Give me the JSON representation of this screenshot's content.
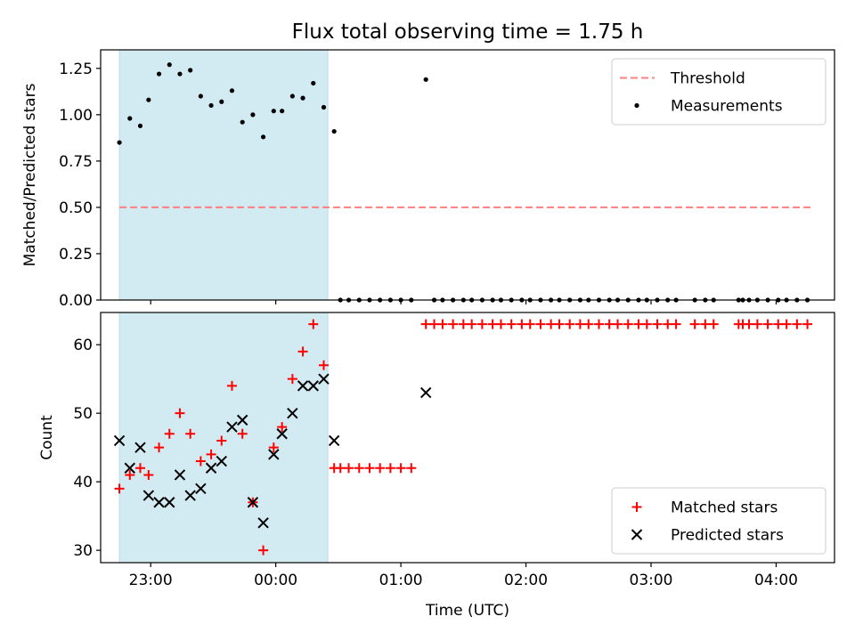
{
  "figure": {
    "title": "Flux total observing time = 1.75 h",
    "xlabel": "Time (UTC)"
  },
  "chart_data": [
    {
      "type": "scatter",
      "title": "Flux total observing time = 1.75 h",
      "ylabel": "Matched/Predicted stars",
      "x_time_range": [
        "22:36",
        "04:28"
      ],
      "ylim": [
        0,
        1.35
      ],
      "yticks": [
        0.0,
        0.25,
        0.5,
        0.75,
        1.0,
        1.25
      ],
      "ytick_labels": [
        "0.00",
        "0.25",
        "0.50",
        "0.75",
        "1.00",
        "1.25"
      ],
      "xticks": [
        "23:00",
        "00:00",
        "01:00",
        "02:00",
        "03:00",
        "04:00"
      ],
      "shaded_region": {
        "start": "22:45",
        "end": "00:25",
        "color": "#add8e6"
      },
      "legend_position": "upper right",
      "threshold": {
        "name": "Threshold",
        "value": 0.5,
        "start": "22:45",
        "end": "04:17",
        "color": "#ff7f7f",
        "style": "dashed"
      },
      "series": [
        {
          "name": "Measurements",
          "color": "#000000",
          "marker": "dot",
          "points": [
            [
              "22:45",
              0.85
            ],
            [
              "22:50",
              0.98
            ],
            [
              "22:55",
              0.94
            ],
            [
              "22:59",
              1.08
            ],
            [
              "23:04",
              1.22
            ],
            [
              "23:09",
              1.27
            ],
            [
              "23:14",
              1.22
            ],
            [
              "23:19",
              1.24
            ],
            [
              "23:24",
              1.1
            ],
            [
              "23:29",
              1.05
            ],
            [
              "23:34",
              1.07
            ],
            [
              "23:39",
              1.13
            ],
            [
              "23:44",
              0.96
            ],
            [
              "23:49",
              1.0
            ],
            [
              "23:54",
              0.88
            ],
            [
              "23:59",
              1.02
            ],
            [
              "00:03",
              1.02
            ],
            [
              "00:08",
              1.1
            ],
            [
              "00:13",
              1.09
            ],
            [
              "00:18",
              1.17
            ],
            [
              "00:23",
              1.04
            ],
            [
              "00:28",
              0.91
            ],
            [
              "00:31",
              0.0
            ],
            [
              "00:35",
              0.0
            ],
            [
              "00:40",
              0.0
            ],
            [
              "00:45",
              0.0
            ],
            [
              "00:50",
              0.0
            ],
            [
              "00:55",
              0.0
            ],
            [
              "01:00",
              0.0
            ],
            [
              "01:05",
              0.0
            ],
            [
              "01:12",
              1.19
            ],
            [
              "01:16",
              0.0
            ],
            [
              "01:20",
              0.0
            ],
            [
              "01:25",
              0.0
            ],
            [
              "01:30",
              0.0
            ],
            [
              "01:34",
              0.0
            ],
            [
              "01:39",
              0.0
            ],
            [
              "01:44",
              0.0
            ],
            [
              "01:48",
              0.0
            ],
            [
              "01:53",
              0.0
            ],
            [
              "01:58",
              0.0
            ],
            [
              "02:02",
              0.0
            ],
            [
              "02:07",
              0.0
            ],
            [
              "02:12",
              0.0
            ],
            [
              "02:16",
              0.0
            ],
            [
              "02:21",
              0.0
            ],
            [
              "02:26",
              0.0
            ],
            [
              "02:30",
              0.0
            ],
            [
              "02:35",
              0.0
            ],
            [
              "02:40",
              0.0
            ],
            [
              "02:44",
              0.0
            ],
            [
              "02:49",
              0.0
            ],
            [
              "02:54",
              0.0
            ],
            [
              "02:58",
              0.0
            ],
            [
              "03:03",
              0.0
            ],
            [
              "03:08",
              0.0
            ],
            [
              "03:12",
              0.0
            ],
            [
              "03:21",
              0.0
            ],
            [
              "03:26",
              0.0
            ],
            [
              "03:30",
              0.0
            ],
            [
              "03:42",
              0.0
            ],
            [
              "03:44",
              0.0
            ],
            [
              "03:47",
              0.0
            ],
            [
              "03:51",
              0.0
            ],
            [
              "03:56",
              0.0
            ],
            [
              "04:01",
              0.0
            ],
            [
              "04:05",
              0.0
            ],
            [
              "04:10",
              0.0
            ],
            [
              "04:15",
              0.0
            ]
          ]
        }
      ]
    },
    {
      "type": "scatter",
      "xlabel": "Time (UTC)",
      "ylabel": "Count",
      "x_time_range": [
        "22:36",
        "04:28"
      ],
      "ylim": [
        28.2,
        64.7
      ],
      "yticks": [
        30,
        40,
        50,
        60
      ],
      "ytick_labels": [
        "30",
        "40",
        "50",
        "60"
      ],
      "xticks": [
        "23:00",
        "00:00",
        "01:00",
        "02:00",
        "03:00",
        "04:00"
      ],
      "shaded_region": {
        "start": "22:45",
        "end": "00:25",
        "color": "#add8e6"
      },
      "legend_position": "lower right",
      "series": [
        {
          "name": "Matched stars",
          "color": "#ff0000",
          "marker": "plus",
          "points": [
            [
              "22:45",
              39
            ],
            [
              "22:50",
              41
            ],
            [
              "22:55",
              42
            ],
            [
              "22:59",
              41
            ],
            [
              "23:04",
              45
            ],
            [
              "23:09",
              47
            ],
            [
              "23:14",
              50
            ],
            [
              "23:19",
              47
            ],
            [
              "23:24",
              43
            ],
            [
              "23:29",
              44
            ],
            [
              "23:34",
              46
            ],
            [
              "23:39",
              54
            ],
            [
              "23:44",
              47
            ],
            [
              "23:49",
              37
            ],
            [
              "23:54",
              30
            ],
            [
              "23:59",
              45
            ],
            [
              "00:03",
              48
            ],
            [
              "00:08",
              55
            ],
            [
              "00:13",
              59
            ],
            [
              "00:18",
              63
            ],
            [
              "00:23",
              57
            ],
            [
              "00:28",
              42
            ],
            [
              "00:31",
              42
            ],
            [
              "00:35",
              42
            ],
            [
              "00:40",
              42
            ],
            [
              "00:45",
              42
            ],
            [
              "00:50",
              42
            ],
            [
              "00:55",
              42
            ],
            [
              "01:00",
              42
            ],
            [
              "01:05",
              42
            ],
            [
              "01:12",
              63
            ],
            [
              "01:16",
              63
            ],
            [
              "01:20",
              63
            ],
            [
              "01:25",
              63
            ],
            [
              "01:30",
              63
            ],
            [
              "01:34",
              63
            ],
            [
              "01:39",
              63
            ],
            [
              "01:44",
              63
            ],
            [
              "01:48",
              63
            ],
            [
              "01:53",
              63
            ],
            [
              "01:58",
              63
            ],
            [
              "02:02",
              63
            ],
            [
              "02:07",
              63
            ],
            [
              "02:12",
              63
            ],
            [
              "02:16",
              63
            ],
            [
              "02:21",
              63
            ],
            [
              "02:26",
              63
            ],
            [
              "02:30",
              63
            ],
            [
              "02:35",
              63
            ],
            [
              "02:40",
              63
            ],
            [
              "02:44",
              63
            ],
            [
              "02:49",
              63
            ],
            [
              "02:54",
              63
            ],
            [
              "02:58",
              63
            ],
            [
              "03:03",
              63
            ],
            [
              "03:08",
              63
            ],
            [
              "03:12",
              63
            ],
            [
              "03:21",
              63
            ],
            [
              "03:26",
              63
            ],
            [
              "03:30",
              63
            ],
            [
              "03:42",
              63
            ],
            [
              "03:44",
              63
            ],
            [
              "03:47",
              63
            ],
            [
              "03:51",
              63
            ],
            [
              "03:56",
              63
            ],
            [
              "04:01",
              63
            ],
            [
              "04:05",
              63
            ],
            [
              "04:10",
              63
            ],
            [
              "04:15",
              63
            ]
          ]
        },
        {
          "name": "Predicted stars",
          "color": "#000000",
          "marker": "x",
          "points": [
            [
              "22:45",
              46
            ],
            [
              "22:50",
              42
            ],
            [
              "22:55",
              45
            ],
            [
              "22:59",
              38
            ],
            [
              "23:04",
              37
            ],
            [
              "23:09",
              37
            ],
            [
              "23:14",
              41
            ],
            [
              "23:19",
              38
            ],
            [
              "23:24",
              39
            ],
            [
              "23:29",
              42
            ],
            [
              "23:34",
              43
            ],
            [
              "23:39",
              48
            ],
            [
              "23:44",
              49
            ],
            [
              "23:49",
              37
            ],
            [
              "23:54",
              34
            ],
            [
              "23:59",
              44
            ],
            [
              "00:03",
              47
            ],
            [
              "00:08",
              50
            ],
            [
              "00:13",
              54
            ],
            [
              "00:18",
              54
            ],
            [
              "00:23",
              55
            ],
            [
              "00:28",
              46
            ],
            [
              "01:12",
              53
            ]
          ]
        }
      ]
    }
  ]
}
